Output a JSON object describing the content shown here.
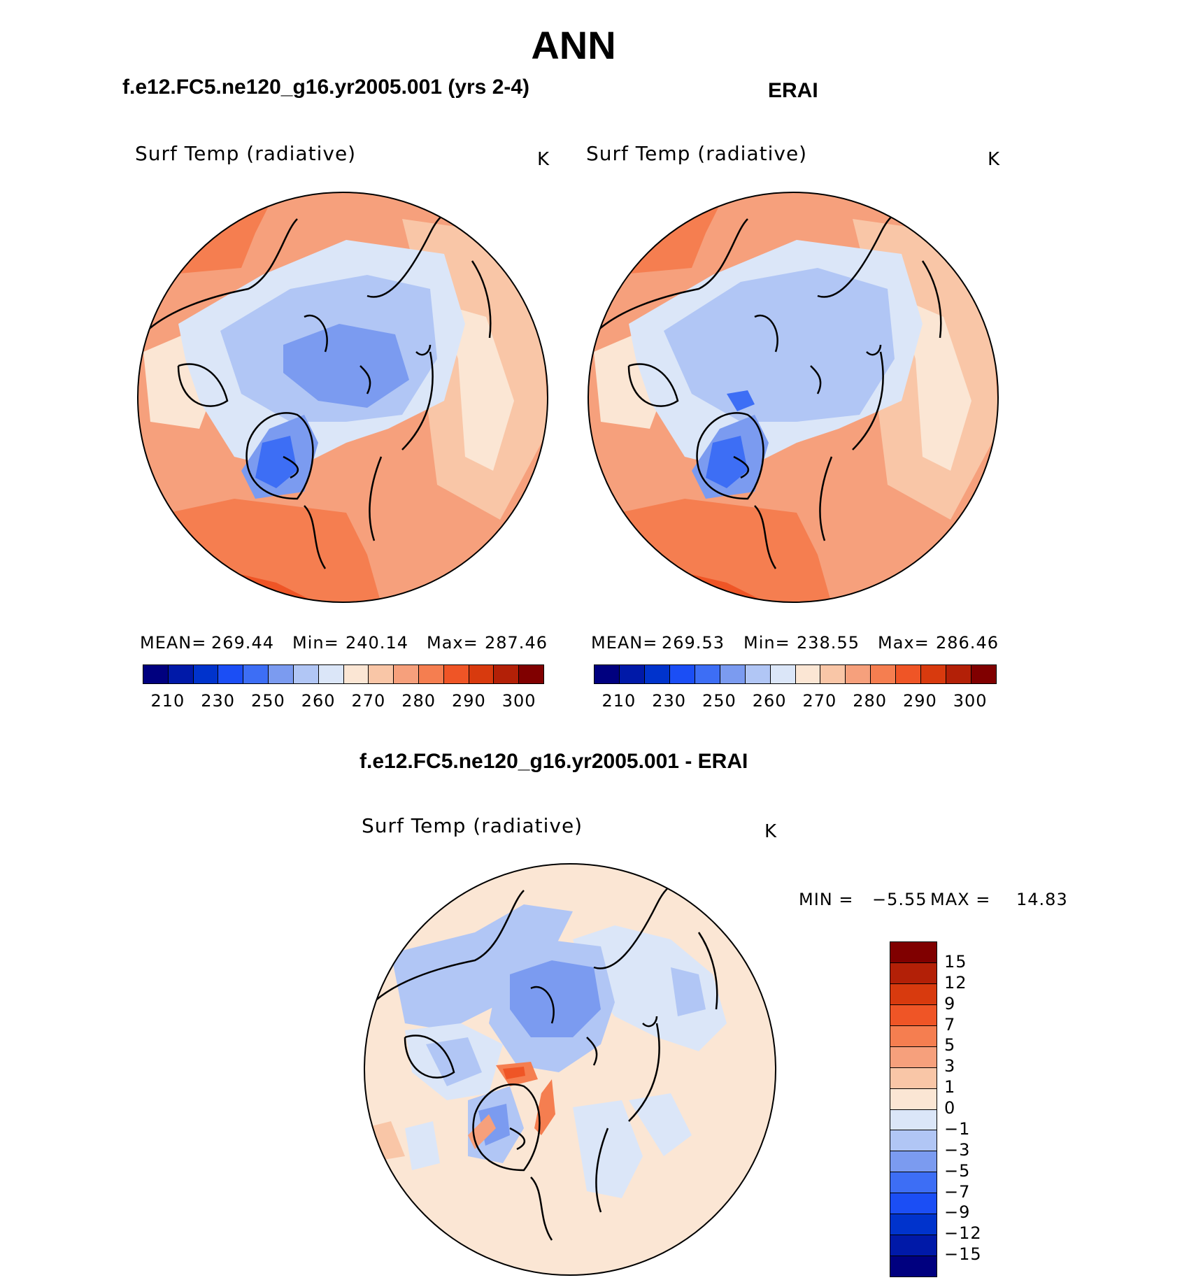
{
  "title": "ANN",
  "panels": {
    "model": {
      "case_title": "f.e12.FC5.ne120_g16.yr2005.001 (yrs 2-4)",
      "variable": "Surf Temp (radiative)",
      "units": "K",
      "stats": {
        "mean_label": "MEAN=",
        "mean": "269.44",
        "min_label": "Min=",
        "min": "240.14",
        "max_label": "Max=",
        "max": "287.46"
      }
    },
    "obs": {
      "case_title": "ERAI",
      "variable": "Surf Temp (radiative)",
      "units": "K",
      "stats": {
        "mean_label": "MEAN=",
        "mean": "269.53",
        "min_label": "Min=",
        "min": "238.55",
        "max_label": "Max=",
        "max": "286.46"
      }
    },
    "diff": {
      "case_title": "f.e12.FC5.ne120_g16.yr2005.001 - ERAI",
      "variable": "Surf Temp (radiative)",
      "units": "K",
      "minmax": {
        "min_label": "MIN =",
        "min": "−5.55",
        "max_label": "MAX =",
        "max": "14.83"
      }
    }
  },
  "colorbars": {
    "absolute": {
      "colors": [
        "#00007f",
        "#0019a8",
        "#0033cc",
        "#1b4ef5",
        "#3d6ef5",
        "#7b9bf0",
        "#b1c6f5",
        "#dbe6f8",
        "#fbe6d4",
        "#f9c6a7",
        "#f6a07c",
        "#f57e50",
        "#ef5526",
        "#d83a0e",
        "#b32007",
        "#800000"
      ],
      "ticks": [
        "210",
        "230",
        "250",
        "260",
        "270",
        "280",
        "290",
        "300"
      ]
    },
    "difference": {
      "colors_top_to_bottom": [
        "#800000",
        "#b32007",
        "#d83a0e",
        "#ef5526",
        "#f57e50",
        "#f6a07c",
        "#f9c6a7",
        "#fbe6d4",
        "#dbe6f8",
        "#b1c6f5",
        "#7b9bf0",
        "#3d6ef5",
        "#1b4ef5",
        "#0033cc",
        "#0019a8",
        "#00007f"
      ],
      "ticks": [
        "15",
        "12",
        "9",
        "7",
        "5",
        "3",
        "1",
        "0",
        "−1",
        "−3",
        "−5",
        "−7",
        "−9",
        "−12",
        "−15"
      ]
    }
  }
}
